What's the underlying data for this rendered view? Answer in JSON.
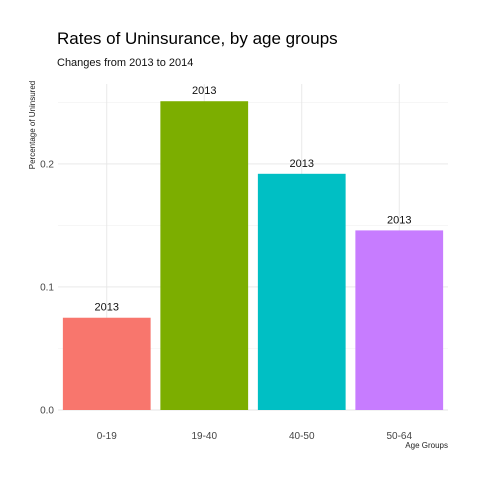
{
  "chart_data": {
    "type": "bar",
    "title": "Rates of Uninsurance, by age groups",
    "subtitle": "Changes from 2013 to 2014",
    "xlabel": "Age Groups",
    "ylabel": "Percentage of Uninsured",
    "categories": [
      "0-19",
      "19-40",
      "40-50",
      "50-64"
    ],
    "values": [
      0.075,
      0.251,
      0.192,
      0.146
    ],
    "data_labels": [
      "2013",
      "2013",
      "2013",
      "2013"
    ],
    "colors": [
      "#F8766D",
      "#7CAE00",
      "#00BFC4",
      "#C77CFF"
    ],
    "ylim": [
      0,
      0.265
    ],
    "yticks": [
      0.0,
      0.1,
      0.2
    ],
    "ytick_labels": [
      "0.0",
      "0.1",
      "0.2"
    ],
    "grid": true,
    "legend": "none"
  }
}
